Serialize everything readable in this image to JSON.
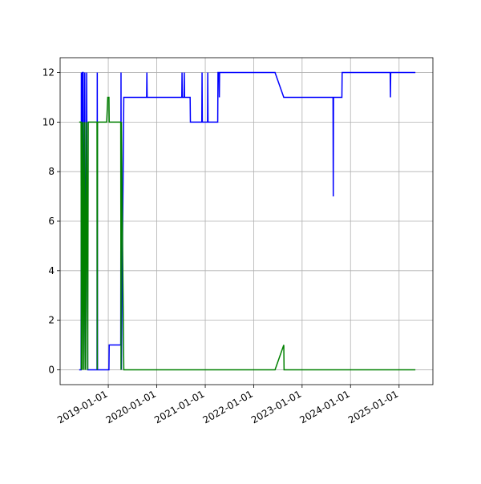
{
  "chart_data": {
    "type": "line",
    "x": [
      "2018-05-27",
      "2018-06-10",
      "2018-06-12",
      "2018-06-16",
      "2018-06-20",
      "2018-06-26",
      "2018-07-02",
      "2018-07-08",
      "2018-07-14",
      "2018-07-22",
      "2018-07-30",
      "2018-08-03",
      "2018-10-08",
      "2018-10-10",
      "2018-10-12",
      "2018-12-20",
      "2018-12-28",
      "2019-01-06",
      "2019-01-08",
      "2019-04-05",
      "2019-04-07",
      "2019-04-10",
      "2019-04-28",
      "2019-10-17",
      "2019-10-19",
      "2019-10-21",
      "2020-07-08",
      "2020-07-10",
      "2020-07-12",
      "2020-07-25",
      "2020-07-27",
      "2020-07-29",
      "2020-09-09",
      "2020-09-11",
      "2020-12-06",
      "2020-12-08",
      "2020-12-10",
      "2021-01-18",
      "2021-01-20",
      "2021-01-22",
      "2021-04-05",
      "2021-04-07",
      "2021-04-15",
      "2021-04-17",
      "2021-04-19",
      "2022-06-11",
      "2022-08-16",
      "2022-08-18",
      "2023-08-22",
      "2023-08-24",
      "2023-08-26",
      "2023-10-28",
      "2023-10-30",
      "2024-10-26",
      "2024-10-28",
      "2024-10-30",
      "2025-05-04"
    ],
    "series": [
      {
        "color": "#0000ff",
        "values": [
          0,
          0,
          12,
          0,
          12,
          12,
          0,
          12,
          0,
          12,
          0,
          0,
          0,
          12,
          0,
          0,
          0,
          0,
          1,
          1,
          12,
          0,
          11,
          11,
          12,
          11,
          11,
          12,
          11,
          11,
          12,
          11,
          11,
          10,
          10,
          12,
          10,
          10,
          12,
          10,
          10,
          12,
          12,
          11,
          12,
          12,
          11,
          11,
          11,
          7,
          11,
          11,
          12,
          12,
          11,
          12,
          12
        ]
      },
      {
        "color": "#008000",
        "values": [
          10,
          10,
          0,
          10,
          0,
          10,
          0,
          10,
          0,
          10,
          0,
          10,
          10,
          0,
          10,
          10,
          11,
          11,
          10,
          10,
          0,
          10,
          0,
          0,
          0,
          0,
          0,
          0,
          0,
          0,
          0,
          0,
          0,
          0,
          0,
          0,
          0,
          0,
          0,
          0,
          0,
          0,
          0,
          0,
          0,
          0,
          1,
          0,
          0,
          0,
          0,
          0,
          0,
          0,
          0,
          0,
          0
        ]
      }
    ],
    "xlim": [
      "2018-01-03",
      "2025-09-13"
    ],
    "xticks": [
      "2019-01-01",
      "2020-01-01",
      "2021-01-01",
      "2022-01-01",
      "2023-01-01",
      "2024-01-01",
      "2025-01-01"
    ],
    "ylim": [
      -0.6,
      12.6
    ],
    "yticks": [
      0,
      2,
      4,
      6,
      8,
      10,
      12
    ],
    "grid": true
  }
}
